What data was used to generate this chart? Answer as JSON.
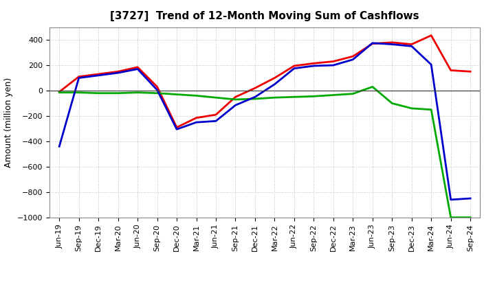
{
  "title": "[3727]  Trend of 12-Month Moving Sum of Cashflows",
  "ylabel": "Amount (million yen)",
  "ylim": [
    -1000,
    500
  ],
  "yticks": [
    -1000,
    -800,
    -600,
    -400,
    -200,
    0,
    200,
    400
  ],
  "background_color": "#ffffff",
  "plot_bg_color": "#ffffff",
  "grid_color": "#aaaaaa",
  "x_labels": [
    "Jun-19",
    "Sep-19",
    "Dec-19",
    "Mar-20",
    "Jun-20",
    "Sep-20",
    "Dec-20",
    "Mar-21",
    "Jun-21",
    "Sep-21",
    "Dec-21",
    "Mar-22",
    "Jun-22",
    "Sep-22",
    "Dec-22",
    "Mar-23",
    "Jun-23",
    "Sep-23",
    "Dec-23",
    "Mar-24",
    "Jun-24",
    "Sep-24"
  ],
  "operating": [
    -10,
    110,
    130,
    150,
    185,
    30,
    -290,
    -215,
    -190,
    -50,
    20,
    100,
    195,
    215,
    230,
    270,
    370,
    380,
    365,
    435,
    160,
    150
  ],
  "investing": [
    -15,
    -15,
    -20,
    -20,
    -15,
    -20,
    -30,
    -40,
    -55,
    -70,
    -65,
    -55,
    -50,
    -45,
    -35,
    -25,
    30,
    -100,
    -140,
    -150,
    -1000,
    -1000
  ],
  "free": [
    -440,
    100,
    120,
    140,
    170,
    5,
    -305,
    -250,
    -240,
    -115,
    -50,
    50,
    175,
    195,
    200,
    245,
    375,
    365,
    350,
    205,
    -860,
    -850
  ],
  "op_color": "#ee0000",
  "inv_color": "#00aa00",
  "free_color": "#0000cc",
  "line_width": 2.0,
  "title_fontsize": 11,
  "ylabel_fontsize": 9,
  "tick_fontsize": 8,
  "legend_fontsize": 9
}
